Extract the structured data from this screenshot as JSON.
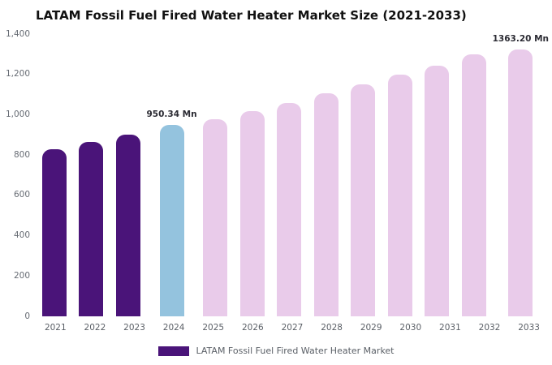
{
  "chart": {
    "title": "LATAM Fossil Fuel Fired Water Heater Market Size (2021-2033)",
    "legend_label": "LATAM Fossil Fuel Fired Water Heater Market",
    "colors": {
      "historical": "#4A1479",
      "current": "#94C3DE",
      "forecast": "#E9CBEA"
    }
  },
  "chart_data": {
    "type": "bar",
    "title": "LATAM Fossil Fuel Fired Water Heater Market Size (2021-2033)",
    "xlabel": "",
    "ylabel": "",
    "unit": "Mn",
    "categories": [
      "2021",
      "2022",
      "2023",
      "2024",
      "2025",
      "2026",
      "2027",
      "2028",
      "2029",
      "2030",
      "2031",
      "2032",
      "2033"
    ],
    "values": [
      830,
      865,
      900,
      950.34,
      978,
      1018,
      1060,
      1105,
      1150,
      1198,
      1245,
      1300,
      1363.2
    ],
    "bar_roles": [
      "historical",
      "historical",
      "historical",
      "current",
      "forecast",
      "forecast",
      "forecast",
      "forecast",
      "forecast",
      "forecast",
      "forecast",
      "forecast",
      "forecast"
    ],
    "data_labels": {
      "2024": "950.34 Mn",
      "2033": "1363.20 Mn"
    },
    "ylim": [
      0,
      1400
    ],
    "yticks": [
      0,
      200,
      400,
      600,
      800,
      1000,
      1200,
      1400
    ],
    "grid": false,
    "legend_position": "bottom",
    "legend_entries": [
      "LATAM Fossil Fuel Fired Water Heater Market"
    ]
  }
}
